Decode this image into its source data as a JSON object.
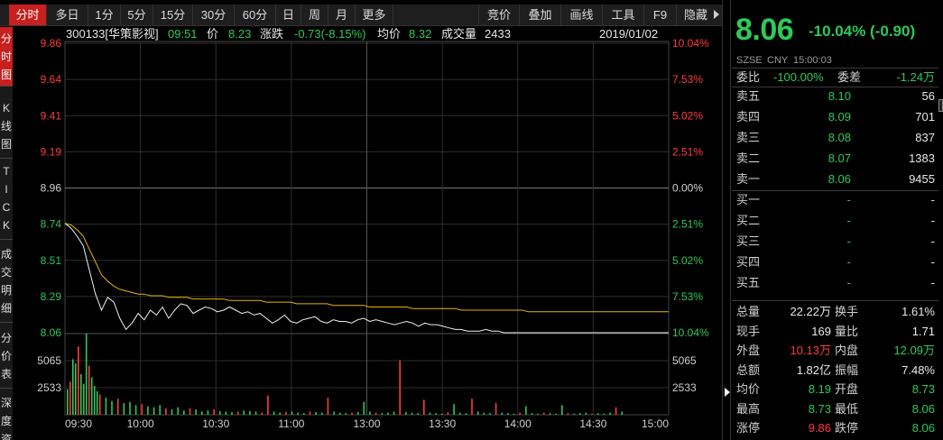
{
  "toolbar": {
    "left_tabs": [
      "分时",
      "多日",
      "1分",
      "5分",
      "15分",
      "30分",
      "60分",
      "日",
      "周",
      "月",
      "更多"
    ],
    "right_tabs": [
      "竞价",
      "叠加",
      "画线",
      "工具",
      "F9",
      "隐藏"
    ]
  },
  "vertical_tabs": [
    {
      "label": [
        "分",
        "时",
        "图"
      ]
    },
    {
      "label": [
        "K",
        "线",
        "图"
      ]
    },
    {
      "label": [
        "T",
        "I",
        "C",
        "K"
      ]
    },
    {
      "label": [
        "成",
        "交",
        "明",
        "细"
      ]
    },
    {
      "label": [
        "分",
        "价",
        "表"
      ]
    },
    {
      "label": [
        "深",
        "度",
        "资"
      ]
    }
  ],
  "info": {
    "code_name": "300133[华策影视]",
    "time": "09:51",
    "price_label": "价",
    "price": "8.23",
    "change_label": "涨跌",
    "change": "-0.73(-8.15%)",
    "avg_label": "均价",
    "avg": "8.32",
    "volume_label": "成交量",
    "volume": "2433",
    "date": "2019/01/02"
  },
  "chart_data": {
    "type": "line",
    "title": "",
    "x_ticks": [
      "09:30",
      "10:00",
      "10:30",
      "11:00",
      "13:00",
      "13:30",
      "14:00",
      "14:30",
      "15:00"
    ],
    "y_left_ticks": [
      "9.86",
      "9.64",
      "9.41",
      "9.19",
      "8.96",
      "8.74",
      "8.51",
      "8.29",
      "8.06"
    ],
    "y_right_ticks": [
      "10.04%",
      "7.53%",
      "5.02%",
      "2.51%",
      "0.00%",
      "2.51%",
      "5.02%",
      "7.53%",
      "10.04%"
    ],
    "prev_close": 8.96,
    "ylim": [
      8.06,
      9.86
    ],
    "volume_ticks_left": [
      "5065",
      "2533"
    ],
    "volume_ticks_right": [
      "5065",
      "2533"
    ],
    "volume_max": 7598,
    "price_points": [
      8.74,
      8.71,
      8.66,
      8.6,
      8.45,
      8.3,
      8.2,
      8.28,
      8.25,
      8.15,
      8.08,
      8.12,
      8.18,
      8.14,
      8.2,
      8.17,
      8.22,
      8.15,
      8.2,
      8.24,
      8.23,
      8.18,
      8.2,
      8.22,
      8.21,
      8.19,
      8.2,
      8.22,
      8.2,
      8.18,
      8.19,
      8.17,
      8.18,
      8.15,
      8.12,
      8.14,
      8.17,
      8.13,
      8.12,
      8.14,
      8.15,
      8.16,
      8.13,
      8.12,
      8.14,
      8.13,
      8.13,
      8.12,
      8.14,
      8.15,
      8.13,
      8.14,
      8.13,
      8.12,
      8.11,
      8.12,
      8.13,
      8.12,
      8.1,
      8.12,
      8.11,
      8.11,
      8.1,
      8.09,
      8.08,
      8.08,
      8.07,
      8.07,
      8.07,
      8.08,
      8.07,
      8.07,
      8.06,
      8.06,
      8.06,
      8.06,
      8.06,
      8.06,
      8.06,
      8.06,
      8.06,
      8.06,
      8.06,
      8.06,
      8.06,
      8.06,
      8.06,
      8.06,
      8.06,
      8.06,
      8.06,
      8.06,
      8.06,
      8.06,
      8.06,
      8.06,
      8.06,
      8.06,
      8.06,
      8.06
    ],
    "avg_points": [
      8.74,
      8.73,
      8.7,
      8.66,
      8.58,
      8.5,
      8.42,
      8.38,
      8.35,
      8.33,
      8.32,
      8.31,
      8.3,
      8.3,
      8.29,
      8.29,
      8.29,
      8.28,
      8.28,
      8.28,
      8.28,
      8.27,
      8.27,
      8.27,
      8.27,
      8.27,
      8.27,
      8.26,
      8.26,
      8.26,
      8.26,
      8.26,
      8.26,
      8.25,
      8.25,
      8.25,
      8.25,
      8.25,
      8.24,
      8.24,
      8.24,
      8.24,
      8.24,
      8.24,
      8.23,
      8.23,
      8.23,
      8.23,
      8.23,
      8.23,
      8.22,
      8.22,
      8.22,
      8.22,
      8.22,
      8.22,
      8.22,
      8.21,
      8.21,
      8.21,
      8.21,
      8.21,
      8.21,
      8.21,
      8.21,
      8.2,
      8.2,
      8.2,
      8.2,
      8.2,
      8.2,
      8.2,
      8.2,
      8.2,
      8.2,
      8.2,
      8.19,
      8.19,
      8.19,
      8.19,
      8.19,
      8.19,
      8.19,
      8.19,
      8.19,
      8.19,
      8.19,
      8.19,
      8.19,
      8.19,
      8.19,
      8.19,
      8.19,
      8.19,
      8.19,
      8.19,
      8.19,
      8.19,
      8.19,
      8.19
    ],
    "volume_bars": [
      2400,
      3100,
      5200,
      4800,
      6400,
      3800,
      2900,
      7598,
      4600,
      3500,
      2700,
      2200,
      1900,
      1600,
      1300,
      1500,
      1100,
      1200,
      900,
      1000,
      800,
      700,
      900,
      600,
      500,
      700,
      400,
      600,
      500,
      300,
      400,
      500,
      350,
      300,
      250,
      300,
      400,
      350,
      300,
      200,
      1800,
      300,
      200,
      250,
      300,
      200,
      150,
      300,
      250,
      200,
      1600,
      300,
      200,
      150,
      200,
      250,
      1200,
      300,
      200,
      150,
      200,
      300,
      5100,
      250,
      200,
      150,
      1400,
      200,
      150,
      100,
      250,
      1000,
      200,
      150,
      1500,
      300,
      200,
      150,
      1100,
      200,
      150,
      100,
      200,
      800,
      150,
      100,
      200,
      150,
      100,
      900,
      150,
      100,
      150,
      200,
      100,
      150,
      100,
      200,
      700,
      300
    ],
    "volume_up": [
      false,
      true,
      false,
      false,
      true,
      false,
      false,
      false,
      true,
      false,
      false,
      false,
      true,
      false,
      false,
      true,
      false,
      false,
      false,
      true,
      false,
      false,
      false,
      true,
      false,
      false,
      false,
      true,
      false,
      false,
      false,
      true,
      false,
      false,
      false,
      true,
      false,
      false,
      false,
      true,
      true,
      false,
      false,
      true,
      false,
      false,
      false,
      true,
      false,
      false,
      true,
      false,
      false,
      false,
      true,
      false,
      false,
      false,
      true,
      false,
      false,
      false,
      true,
      false,
      false,
      false,
      true,
      false,
      false,
      false,
      true,
      false,
      false,
      false,
      true,
      false,
      false,
      false,
      true,
      false,
      false,
      false,
      true,
      false,
      false,
      false,
      true,
      false,
      false,
      false,
      true,
      false,
      false,
      false,
      true,
      false,
      false,
      false,
      true,
      false
    ]
  },
  "quote": {
    "price": "8.06",
    "change": "-10.04% (-0.90)",
    "exchange": "SZSE",
    "currency": "CNY",
    "timestamp": "15:00:03",
    "weibi_label": "委比",
    "weibi": "-100.00%",
    "weicha_label": "委差",
    "weicha": "-1.24万",
    "asks": [
      {
        "label": "卖五",
        "price": "8.10",
        "vol": "56"
      },
      {
        "label": "卖四",
        "price": "8.09",
        "vol": "701"
      },
      {
        "label": "卖三",
        "price": "8.08",
        "vol": "837"
      },
      {
        "label": "卖二",
        "price": "8.07",
        "vol": "1383"
      },
      {
        "label": "卖一",
        "price": "8.06",
        "vol": "9455"
      }
    ],
    "bids": [
      {
        "label": "买一",
        "price": "-",
        "vol": "-"
      },
      {
        "label": "买二",
        "price": "-",
        "vol": "-"
      },
      {
        "label": "买三",
        "price": "-",
        "vol": "-"
      },
      {
        "label": "买四",
        "price": "-",
        "vol": "-"
      },
      {
        "label": "买五",
        "price": "-",
        "vol": "-"
      }
    ],
    "stats": [
      {
        "l1": "总量",
        "v1": "22.22万",
        "c1": "white",
        "l2": "换手",
        "v2": "1.61%",
        "c2": "white"
      },
      {
        "l1": "现手",
        "v1": "169",
        "c1": "white",
        "l2": "量比",
        "v2": "1.71",
        "c2": "white"
      },
      {
        "l1": "外盘",
        "v1": "10.13万",
        "c1": "red",
        "l2": "内盘",
        "v2": "12.09万",
        "c2": "green"
      },
      {
        "l1": "总额",
        "v1": "1.82亿",
        "c1": "white",
        "l2": "振幅",
        "v2": "7.48%",
        "c2": "white"
      },
      {
        "l1": "均价",
        "v1": "8.19",
        "c1": "green",
        "l2": "开盘",
        "v2": "8.73",
        "c2": "green"
      },
      {
        "l1": "最高",
        "v1": "8.73",
        "c1": "green",
        "l2": "最低",
        "v2": "8.06",
        "c2": "green"
      },
      {
        "l1": "涨停",
        "v1": "9.86",
        "c1": "red",
        "l2": "跌停",
        "v2": "8.06",
        "c2": "green"
      }
    ]
  }
}
